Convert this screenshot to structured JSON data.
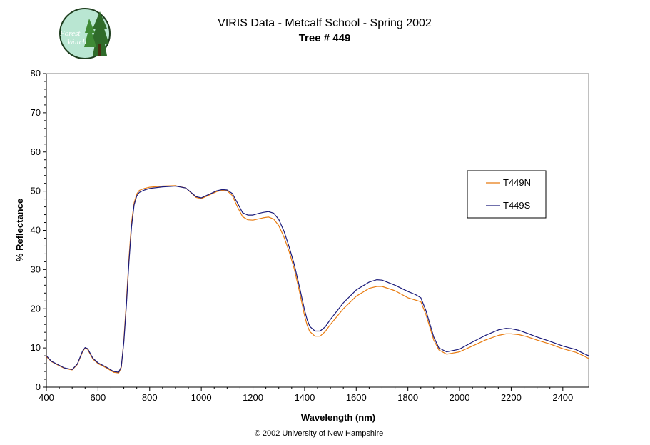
{
  "chart_data": {
    "type": "line",
    "title": "VIRIS Data - Metcalf School - Spring 2002",
    "subtitle": "Tree # 449",
    "xlabel": "Wavelength (nm)",
    "ylabel": "% Reflectance",
    "xlim": [
      400,
      2500
    ],
    "ylim": [
      0,
      80
    ],
    "xticks": [
      400,
      600,
      800,
      1000,
      1200,
      1400,
      1600,
      1800,
      2000,
      2200,
      2400
    ],
    "yticks": [
      0,
      10,
      20,
      30,
      40,
      50,
      60,
      70,
      80
    ],
    "grid": false,
    "legend_position": "right",
    "series": [
      {
        "name": "T449N",
        "color": "#e87b10",
        "x": [
          400,
          420,
          440,
          470,
          500,
          520,
          540,
          550,
          560,
          580,
          600,
          630,
          660,
          680,
          690,
          700,
          710,
          720,
          730,
          740,
          750,
          760,
          780,
          800,
          850,
          900,
          940,
          960,
          980,
          1000,
          1020,
          1040,
          1060,
          1080,
          1100,
          1120,
          1140,
          1160,
          1180,
          1200,
          1220,
          1240,
          1260,
          1280,
          1300,
          1320,
          1340,
          1360,
          1380,
          1400,
          1410,
          1420,
          1440,
          1460,
          1480,
          1500,
          1550,
          1600,
          1650,
          1680,
          1700,
          1750,
          1800,
          1830,
          1850,
          1870,
          1900,
          1920,
          1950,
          2000,
          2050,
          2100,
          2150,
          2180,
          2200,
          2230,
          2260,
          2300,
          2350,
          2400,
          2450,
          2480,
          2500
        ],
        "y": [
          7.8,
          6.5,
          5.8,
          4.8,
          4.4,
          5.8,
          9.0,
          10.0,
          9.6,
          7.2,
          6.0,
          5.0,
          3.8,
          3.6,
          5.0,
          12.0,
          22.0,
          33.0,
          42.0,
          47.0,
          49.3,
          50.2,
          50.7,
          51.0,
          51.3,
          51.4,
          50.8,
          49.6,
          48.4,
          48.1,
          48.7,
          49.3,
          49.9,
          50.2,
          50.1,
          48.9,
          46.0,
          43.5,
          42.7,
          42.6,
          42.9,
          43.2,
          43.4,
          42.9,
          41.2,
          38.3,
          34.6,
          30.2,
          24.4,
          18.2,
          15.8,
          14.2,
          13.0,
          13.0,
          14.2,
          16.0,
          20.0,
          23.2,
          25.2,
          25.7,
          25.7,
          24.6,
          22.8,
          22.2,
          21.8,
          18.5,
          12.0,
          9.5,
          8.4,
          9.0,
          10.5,
          12.0,
          13.2,
          13.6,
          13.6,
          13.4,
          12.9,
          12.0,
          11.0,
          9.8,
          8.9,
          8.0,
          7.3
        ]
      },
      {
        "name": "T449S",
        "color": "#1a1a7a",
        "x": [
          400,
          420,
          440,
          470,
          500,
          520,
          540,
          550,
          560,
          580,
          600,
          630,
          660,
          680,
          690,
          700,
          710,
          720,
          730,
          740,
          750,
          760,
          780,
          800,
          850,
          900,
          940,
          960,
          980,
          1000,
          1020,
          1040,
          1060,
          1080,
          1100,
          1120,
          1140,
          1160,
          1180,
          1200,
          1220,
          1240,
          1260,
          1280,
          1300,
          1320,
          1340,
          1360,
          1380,
          1400,
          1410,
          1420,
          1440,
          1460,
          1480,
          1500,
          1550,
          1600,
          1650,
          1680,
          1700,
          1750,
          1800,
          1830,
          1850,
          1870,
          1900,
          1920,
          1950,
          2000,
          2050,
          2100,
          2150,
          2180,
          2200,
          2230,
          2260,
          2300,
          2350,
          2400,
          2450,
          2480,
          2500
        ],
        "y": [
          8.0,
          6.6,
          5.9,
          4.9,
          4.5,
          5.9,
          9.2,
          10.1,
          9.8,
          7.4,
          6.2,
          5.2,
          4.0,
          3.8,
          5.2,
          11.5,
          21.0,
          32.0,
          41.0,
          46.5,
          48.8,
          49.7,
          50.3,
          50.7,
          51.1,
          51.3,
          50.8,
          49.7,
          48.6,
          48.3,
          48.9,
          49.5,
          50.1,
          50.4,
          50.3,
          49.4,
          47.0,
          44.5,
          43.9,
          43.9,
          44.3,
          44.6,
          44.8,
          44.4,
          42.8,
          39.8,
          35.8,
          31.3,
          25.6,
          19.6,
          17.2,
          15.5,
          14.3,
          14.3,
          15.4,
          17.3,
          21.5,
          24.8,
          26.8,
          27.4,
          27.3,
          26.0,
          24.4,
          23.6,
          22.8,
          19.5,
          12.8,
          10.0,
          9.0,
          9.7,
          11.5,
          13.2,
          14.6,
          15.0,
          14.9,
          14.5,
          13.8,
          12.8,
          11.7,
          10.5,
          9.6,
          8.6,
          8.0
        ]
      }
    ]
  },
  "footer": {
    "copyright": "© 2002 University of New Hampshire"
  },
  "logo": {
    "line1": "Forest",
    "line2": "Watch"
  }
}
